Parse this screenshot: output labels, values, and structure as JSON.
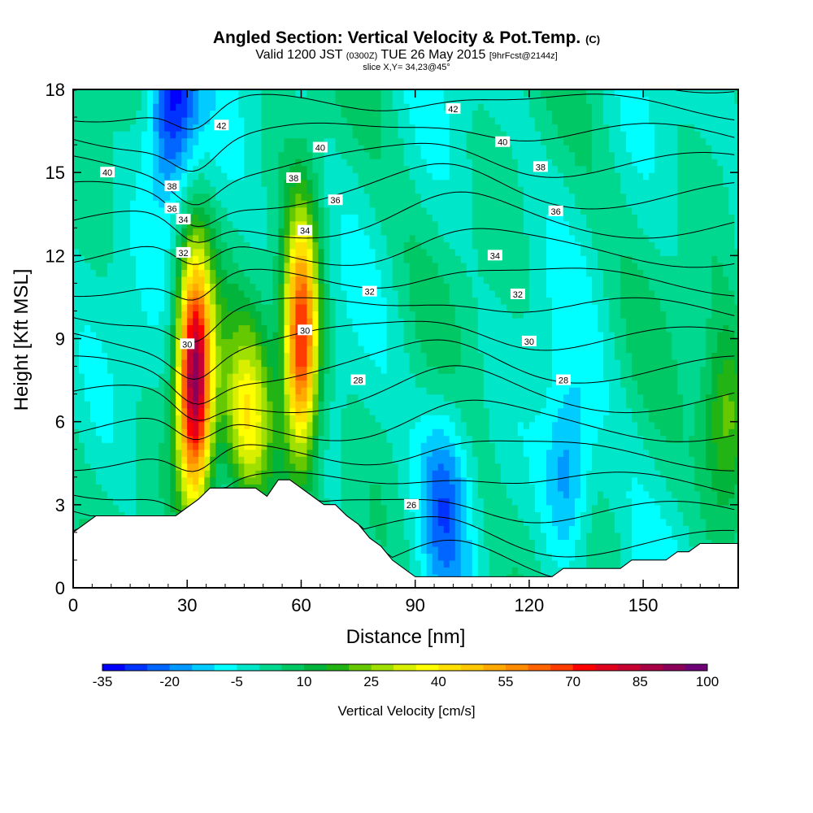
{
  "title": {
    "main": "Angled Section: Vertical Velocity & Pot.Temp.",
    "main_suffix": "(C)",
    "valid_prefix": "Valid 1200 JST",
    "valid_zulu": "(0300Z)",
    "valid_date": "TUE 26 May 2015",
    "forecast": "[9hrFcst@2144z]",
    "slice": "slice X,Y= 34,23@45°"
  },
  "chart_data": {
    "type": "heatmap",
    "xlabel": "Distance [nm]",
    "ylabel": "Height [Kft MSL]",
    "xlim": [
      0,
      175
    ],
    "ylim": [
      0,
      18
    ],
    "xticks": [
      0,
      30,
      60,
      90,
      120,
      150
    ],
    "yticks": [
      0,
      3,
      6,
      9,
      12,
      15,
      18
    ],
    "colorbar": {
      "label": "Vertical Velocity [cm/s]",
      "tick_labels": [
        "-35",
        "-20",
        "-5",
        "10",
        "25",
        "40",
        "55",
        "70",
        "85",
        "100"
      ],
      "levels": [
        -35,
        -30,
        -25,
        -20,
        -15,
        -10,
        -5,
        0,
        5,
        10,
        15,
        20,
        25,
        30,
        35,
        40,
        45,
        50,
        55,
        60,
        65,
        70,
        75,
        80,
        85,
        90,
        95,
        100
      ],
      "colors": [
        "#0000ff",
        "#0033ff",
        "#0066ff",
        "#0099ff",
        "#00ccff",
        "#00ffff",
        "#00e6c8",
        "#00d890",
        "#00c864",
        "#00b43c",
        "#22b414",
        "#66c800",
        "#a0e000",
        "#d8f000",
        "#ffff00",
        "#ffe000",
        "#ffc800",
        "#ffaa00",
        "#ff8c00",
        "#ff6400",
        "#ff3c00",
        "#ff0000",
        "#e0001e",
        "#c80032",
        "#aa0046",
        "#8c005a",
        "#6e0078"
      ]
    },
    "velocity_features": [
      {
        "x": 32,
        "z": 7.5,
        "value": 95,
        "desc": "updraft core"
      },
      {
        "x": 60,
        "z": 9.0,
        "value": 75,
        "desc": "updraft core"
      },
      {
        "x": 46,
        "z": 6.0,
        "value": 35,
        "desc": "updraft"
      },
      {
        "x": 26,
        "z": 17.5,
        "value": -35,
        "desc": "downdraft"
      },
      {
        "x": 98,
        "z": 3.5,
        "value": -20,
        "desc": "downdraft"
      },
      {
        "x": 130,
        "z": 4.0,
        "value": -20,
        "desc": "downdraft"
      },
      {
        "x": 172,
        "z": 6.0,
        "value": 25,
        "desc": "updraft"
      }
    ],
    "theta_contour_labels": [
      {
        "value": "42",
        "x": 39,
        "z": 16.7
      },
      {
        "value": "42",
        "x": 100,
        "z": 17.3
      },
      {
        "value": "40",
        "x": 9,
        "z": 15.0
      },
      {
        "value": "40",
        "x": 65,
        "z": 15.9
      },
      {
        "value": "40",
        "x": 113,
        "z": 16.1
      },
      {
        "value": "38",
        "x": 26,
        "z": 14.5
      },
      {
        "value": "38",
        "x": 58,
        "z": 14.8
      },
      {
        "value": "38",
        "x": 123,
        "z": 15.2
      },
      {
        "value": "36",
        "x": 26,
        "z": 13.7
      },
      {
        "value": "36",
        "x": 69,
        "z": 14.0
      },
      {
        "value": "36",
        "x": 127,
        "z": 13.6
      },
      {
        "value": "34",
        "x": 29,
        "z": 13.3
      },
      {
        "value": "34",
        "x": 61,
        "z": 12.9
      },
      {
        "value": "34",
        "x": 111,
        "z": 12.0
      },
      {
        "value": "32",
        "x": 29,
        "z": 12.1
      },
      {
        "value": "32",
        "x": 78,
        "z": 10.7
      },
      {
        "value": "32",
        "x": 117,
        "z": 10.6
      },
      {
        "value": "30",
        "x": 30,
        "z": 8.8
      },
      {
        "value": "30",
        "x": 61,
        "z": 9.3
      },
      {
        "value": "30",
        "x": 120,
        "z": 8.9
      },
      {
        "value": "28",
        "x": 75,
        "z": 7.5
      },
      {
        "value": "28",
        "x": 129,
        "z": 7.5
      },
      {
        "value": "26",
        "x": 89,
        "z": 3.0
      }
    ],
    "terrain": {
      "x": [
        0,
        3,
        6,
        9,
        12,
        15,
        18,
        21,
        24,
        27,
        30,
        33,
        36,
        40,
        44,
        48,
        51,
        54,
        57,
        60,
        63,
        66,
        69,
        72,
        75,
        78,
        81,
        84,
        87,
        90,
        93,
        96,
        99,
        102,
        105,
        108,
        111,
        114,
        117,
        120,
        123,
        126,
        129,
        132,
        135,
        138,
        141,
        144,
        147,
        150,
        153,
        156,
        159,
        162,
        165,
        168,
        171,
        175
      ],
      "z": [
        2.0,
        2.3,
        2.6,
        2.6,
        2.6,
        2.6,
        2.6,
        2.6,
        2.6,
        2.6,
        2.9,
        3.2,
        3.6,
        3.6,
        3.6,
        3.6,
        3.3,
        3.9,
        3.9,
        3.6,
        3.3,
        3.0,
        3.0,
        2.6,
        2.3,
        1.8,
        1.5,
        1.0,
        0.7,
        0.4,
        0.4,
        0.4,
        0.4,
        0.4,
        0.4,
        0.4,
        0.4,
        0.4,
        0.4,
        0.4,
        0.4,
        0.4,
        0.7,
        0.7,
        0.7,
        0.7,
        0.7,
        0.7,
        1.0,
        1.0,
        1.0,
        1.0,
        1.3,
        1.3,
        1.6,
        1.6,
        1.6,
        1.6
      ]
    }
  }
}
